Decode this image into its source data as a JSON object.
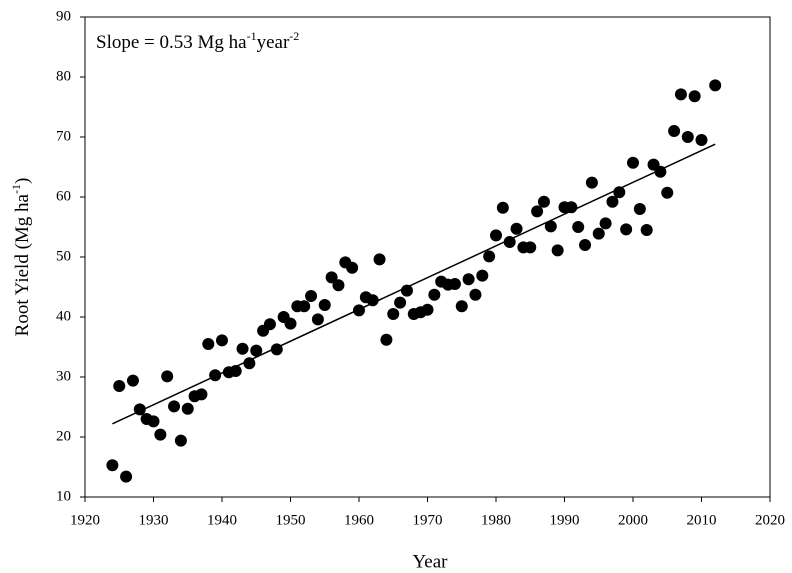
{
  "chart_data": {
    "type": "scatter",
    "annotation": {
      "parts": [
        "Slope = 0.53 Mg ha",
        "-1",
        "year",
        "-2"
      ]
    },
    "x_label": "Year",
    "y_label": {
      "parts": [
        "Root Yield (Mg ha",
        "-1",
        ")"
      ]
    },
    "xlim": [
      1920,
      2020
    ],
    "xticks": [
      1920,
      1930,
      1940,
      1950,
      1960,
      1970,
      1980,
      1990,
      2000,
      2010,
      2020
    ],
    "ylim": [
      10,
      90
    ],
    "yticks": [
      10,
      20,
      30,
      40,
      50,
      60,
      70,
      80,
      90
    ],
    "color": "#000000",
    "x": [
      1924,
      1925,
      1926,
      1927,
      1928,
      1929,
      1930,
      1931,
      1932,
      1933,
      1934,
      1935,
      1936,
      1937,
      1938,
      1939,
      1940,
      1941,
      1942,
      1943,
      1944,
      1945,
      1946,
      1947,
      1948,
      1949,
      1950,
      1951,
      1952,
      1953,
      1954,
      1955,
      1956,
      1957,
      1958,
      1959,
      1960,
      1961,
      1962,
      1963,
      1964,
      1965,
      1966,
      1967,
      1968,
      1969,
      1970,
      1971,
      1972,
      1973,
      1974,
      1975,
      1976,
      1977,
      1978,
      1979,
      1980,
      1981,
      1982,
      1983,
      1984,
      1985,
      1986,
      1987,
      1988,
      1989,
      1990,
      1991,
      1992,
      1993,
      1994,
      1995,
      1996,
      1997,
      1998,
      1999,
      2000,
      2001,
      2002,
      2003,
      2004,
      2005,
      2006,
      2007,
      2008,
      2009,
      2010,
      2012
    ],
    "values": [
      15.3,
      28.5,
      13.4,
      29.4,
      24.6,
      23.0,
      22.6,
      20.4,
      30.1,
      25.1,
      19.4,
      24.7,
      26.8,
      27.1,
      35.5,
      30.3,
      36.1,
      30.8,
      31.0,
      34.7,
      32.3,
      34.4,
      37.7,
      38.8,
      34.6,
      40.0,
      38.9,
      41.8,
      41.8,
      43.5,
      39.6,
      42.0,
      46.6,
      45.3,
      49.1,
      48.2,
      41.1,
      43.3,
      42.8,
      49.6,
      36.2,
      40.5,
      42.4,
      44.4,
      40.5,
      40.8,
      41.2,
      43.7,
      45.9,
      45.4,
      45.5,
      41.8,
      46.3,
      43.7,
      46.9,
      50.1,
      53.6,
      58.2,
      52.5,
      54.7,
      51.6,
      51.6,
      57.6,
      59.2,
      55.1,
      51.1,
      58.3,
      58.3,
      55.0,
      52.0,
      62.4,
      53.9,
      55.6,
      59.2,
      60.8,
      54.6,
      65.7,
      58.0,
      54.5,
      65.4,
      64.2,
      60.7,
      71.0,
      77.1,
      70.0,
      76.8,
      69.5,
      78.6
    ],
    "trend_line": {
      "x": [
        1924,
        2012
      ],
      "values": [
        22.2,
        68.8
      ],
      "color": "#000000"
    }
  }
}
